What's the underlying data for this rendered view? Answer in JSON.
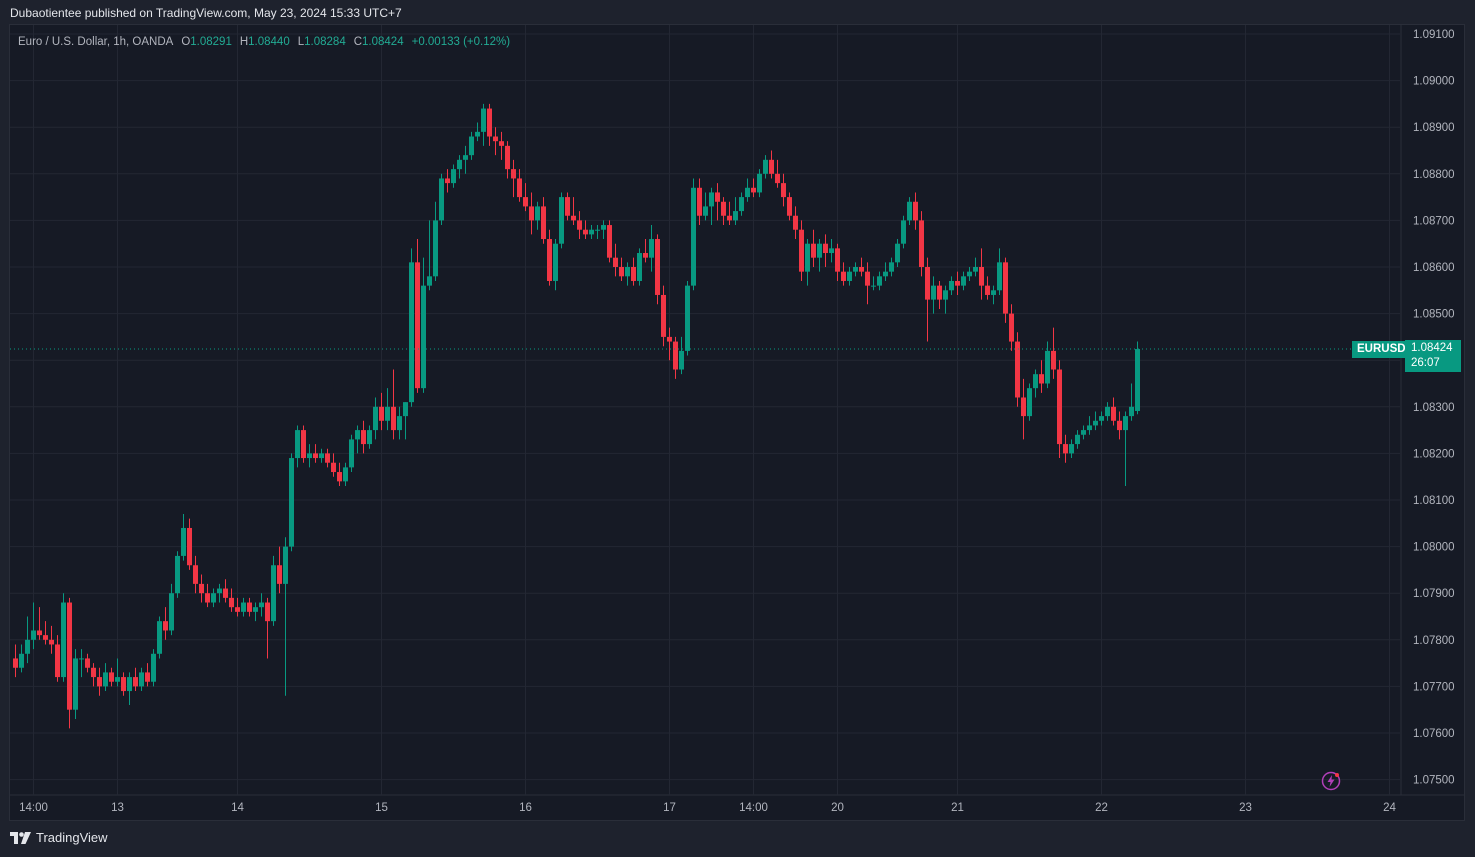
{
  "header": {
    "publish_line": "Dubaotientee published on TradingView.com, May 23, 2024 15:33 UTC+7"
  },
  "legend": {
    "description": "Euro / U.S. Dollar, 1h, OANDA",
    "open_label": "O",
    "open": "1.08291",
    "high_label": "H",
    "high": "1.08440",
    "low_label": "L",
    "low": "1.08284",
    "close_label": "C",
    "close": "1.08424",
    "change": "+0.00133 (+0.12%)"
  },
  "price_tag": {
    "symbol": "EURUSD",
    "price": "1.08424",
    "countdown": "26:07"
  },
  "footer": {
    "brand": "TradingView"
  },
  "colors": {
    "up": "#089981",
    "down": "#f23645",
    "grid": "#232733",
    "background": "#161a25"
  },
  "icons": [
    "tradingview-logo-icon",
    "bolt-icon"
  ],
  "chart_data": {
    "type": "candlestick",
    "symbol": "EURUSD",
    "interval": "1h",
    "y_ticks": [
      "1.09100",
      "1.09000",
      "1.08900",
      "1.08800",
      "1.08700",
      "1.08600",
      "1.08500",
      "1.08400",
      "1.08300",
      "1.08200",
      "1.08100",
      "1.08000",
      "1.07900",
      "1.07800",
      "1.07700",
      "1.07600",
      "1.07500"
    ],
    "ylim": [
      1.0745,
      1.0915
    ],
    "x_ticks": [
      {
        "label": "14:00",
        "index": 3
      },
      {
        "label": "13",
        "index": 17
      },
      {
        "label": "14",
        "index": 37
      },
      {
        "label": "15",
        "index": 61
      },
      {
        "label": "16",
        "index": 85
      },
      {
        "label": "17",
        "index": 109
      },
      {
        "label": "14:00",
        "index": 123
      },
      {
        "label": "20",
        "index": 137
      },
      {
        "label": "21",
        "index": 157
      },
      {
        "label": "22",
        "index": 181
      },
      {
        "label": "23",
        "index": 205
      },
      {
        "label": "24",
        "index": 229
      }
    ],
    "last_price": 1.08424,
    "candles": [
      [
        1.0776,
        1.0779,
        1.0772,
        1.0774
      ],
      [
        1.0774,
        1.0779,
        1.0773,
        1.0777
      ],
      [
        1.0777,
        1.0785,
        1.0775,
        1.078
      ],
      [
        1.078,
        1.0788,
        1.0778,
        1.0782
      ],
      [
        1.0782,
        1.0787,
        1.078,
        1.0781
      ],
      [
        1.0781,
        1.0784,
        1.0779,
        1.078
      ],
      [
        1.078,
        1.0783,
        1.0777,
        1.0779
      ],
      [
        1.0779,
        1.0781,
        1.0771,
        1.0772
      ],
      [
        1.0772,
        1.079,
        1.0771,
        1.0788
      ],
      [
        1.0788,
        1.0789,
        1.0761,
        1.0765
      ],
      [
        1.0765,
        1.0778,
        1.0763,
        1.0776
      ],
      [
        1.0776,
        1.0778,
        1.0772,
        1.0776
      ],
      [
        1.0776,
        1.0777,
        1.0773,
        1.0774
      ],
      [
        1.0774,
        1.0775,
        1.077,
        1.0772
      ],
      [
        1.0772,
        1.0774,
        1.0768,
        1.077
      ],
      [
        1.077,
        1.0775,
        1.0769,
        1.0773
      ],
      [
        1.0773,
        1.0774,
        1.077,
        1.0771
      ],
      [
        1.0771,
        1.0776,
        1.077,
        1.0772
      ],
      [
        1.0772,
        1.0773,
        1.0768,
        1.0769
      ],
      [
        1.0769,
        1.0773,
        1.0766,
        1.0772
      ],
      [
        1.0772,
        1.0774,
        1.0769,
        1.077
      ],
      [
        1.077,
        1.0774,
        1.0769,
        1.0773
      ],
      [
        1.0773,
        1.0775,
        1.077,
        1.0771
      ],
      [
        1.0771,
        1.0778,
        1.077,
        1.0777
      ],
      [
        1.0777,
        1.0785,
        1.0776,
        1.0784
      ],
      [
        1.0784,
        1.0787,
        1.078,
        1.0782
      ],
      [
        1.0782,
        1.0792,
        1.0781,
        1.079
      ],
      [
        1.079,
        1.0799,
        1.0789,
        1.0798
      ],
      [
        1.0798,
        1.0807,
        1.0797,
        1.0804
      ],
      [
        1.0804,
        1.0806,
        1.0795,
        1.0796
      ],
      [
        1.0796,
        1.0798,
        1.079,
        1.0792
      ],
      [
        1.0792,
        1.0794,
        1.0788,
        1.079
      ],
      [
        1.079,
        1.0792,
        1.0787,
        1.0788
      ],
      [
        1.0788,
        1.0791,
        1.0787,
        1.079
      ],
      [
        1.079,
        1.0792,
        1.0788,
        1.0791
      ],
      [
        1.0791,
        1.0793,
        1.0788,
        1.0789
      ],
      [
        1.0789,
        1.0791,
        1.0786,
        1.0787
      ],
      [
        1.0787,
        1.0789,
        1.0785,
        1.0786
      ],
      [
        1.0786,
        1.0789,
        1.0785,
        1.0788
      ],
      [
        1.0788,
        1.0789,
        1.0785,
        1.0786
      ],
      [
        1.0786,
        1.0788,
        1.0784,
        1.0787
      ],
      [
        1.0787,
        1.079,
        1.0785,
        1.0788
      ],
      [
        1.0788,
        1.0789,
        1.0776,
        1.0784
      ],
      [
        1.0784,
        1.0798,
        1.0783,
        1.0796
      ],
      [
        1.0796,
        1.08,
        1.079,
        1.0792
      ],
      [
        1.0792,
        1.0802,
        1.0768,
        1.08
      ],
      [
        1.08,
        1.082,
        1.0799,
        1.0819
      ],
      [
        1.0819,
        1.0826,
        1.0817,
        1.0825
      ],
      [
        1.0825,
        1.0826,
        1.0818,
        1.0819
      ],
      [
        1.0819,
        1.0822,
        1.0817,
        1.082
      ],
      [
        1.082,
        1.0822,
        1.0818,
        1.0819
      ],
      [
        1.0819,
        1.0821,
        1.0818,
        1.082
      ],
      [
        1.082,
        1.0821,
        1.0817,
        1.0818
      ],
      [
        1.0818,
        1.082,
        1.0815,
        1.0816
      ],
      [
        1.0816,
        1.0818,
        1.0813,
        1.0814
      ],
      [
        1.0814,
        1.0818,
        1.0813,
        1.0817
      ],
      [
        1.0817,
        1.0824,
        1.0816,
        1.0823
      ],
      [
        1.0823,
        1.0826,
        1.082,
        1.0825
      ],
      [
        1.0825,
        1.0827,
        1.082,
        1.0822
      ],
      [
        1.0822,
        1.0826,
        1.0821,
        1.0825
      ],
      [
        1.0825,
        1.0832,
        1.0823,
        1.083
      ],
      [
        1.083,
        1.0833,
        1.0825,
        1.0827
      ],
      [
        1.0827,
        1.0834,
        1.0825,
        1.083
      ],
      [
        1.083,
        1.0838,
        1.0823,
        1.0825
      ],
      [
        1.0825,
        1.083,
        1.0823,
        1.0828
      ],
      [
        1.0828,
        1.0831,
        1.0823,
        1.0831
      ],
      [
        1.0831,
        1.0864,
        1.083,
        1.0861
      ],
      [
        1.0861,
        1.0866,
        1.0833,
        1.0834
      ],
      [
        1.0834,
        1.0862,
        1.0833,
        1.0856
      ],
      [
        1.0856,
        1.087,
        1.0855,
        1.0858
      ],
      [
        1.0858,
        1.0874,
        1.0857,
        1.087
      ],
      [
        1.087,
        1.088,
        1.0869,
        1.0879
      ],
      [
        1.0879,
        1.0881,
        1.0876,
        1.0878
      ],
      [
        1.0878,
        1.0882,
        1.0877,
        1.0881
      ],
      [
        1.0881,
        1.0884,
        1.0879,
        1.0883
      ],
      [
        1.0883,
        1.0886,
        1.088,
        1.0884
      ],
      [
        1.0884,
        1.0889,
        1.0883,
        1.0888
      ],
      [
        1.0888,
        1.0891,
        1.0887,
        1.0889
      ],
      [
        1.0889,
        1.0895,
        1.0886,
        1.0894
      ],
      [
        1.0894,
        1.0895,
        1.0886,
        1.0888
      ],
      [
        1.0888,
        1.089,
        1.0884,
        1.0887
      ],
      [
        1.0887,
        1.0889,
        1.0883,
        1.0886
      ],
      [
        1.0886,
        1.0887,
        1.0879,
        1.0881
      ],
      [
        1.0881,
        1.0883,
        1.0875,
        1.0879
      ],
      [
        1.0879,
        1.0881,
        1.0874,
        1.0875
      ],
      [
        1.0875,
        1.0878,
        1.0872,
        1.0873
      ],
      [
        1.0873,
        1.0876,
        1.0867,
        1.087
      ],
      [
        1.087,
        1.0874,
        1.0868,
        1.0873
      ],
      [
        1.0873,
        1.0875,
        1.0865,
        1.0866
      ],
      [
        1.0866,
        1.0868,
        1.0856,
        1.0857
      ],
      [
        1.0857,
        1.0866,
        1.0855,
        1.0865
      ],
      [
        1.0865,
        1.0876,
        1.0864,
        1.0875
      ],
      [
        1.0875,
        1.0876,
        1.087,
        1.0871
      ],
      [
        1.0871,
        1.0875,
        1.0869,
        1.087
      ],
      [
        1.087,
        1.0872,
        1.0866,
        1.0868
      ],
      [
        1.0868,
        1.087,
        1.0866,
        1.0867
      ],
      [
        1.0867,
        1.0869,
        1.0866,
        1.0868
      ],
      [
        1.0868,
        1.0869,
        1.0866,
        1.0868
      ],
      [
        1.0868,
        1.087,
        1.0866,
        1.0869
      ],
      [
        1.0869,
        1.087,
        1.0861,
        1.0862
      ],
      [
        1.0862,
        1.0865,
        1.0858,
        1.086
      ],
      [
        1.086,
        1.0862,
        1.0857,
        1.0858
      ],
      [
        1.0858,
        1.0861,
        1.0856,
        1.086
      ],
      [
        1.086,
        1.0862,
        1.0856,
        1.0857
      ],
      [
        1.0857,
        1.0864,
        1.0856,
        1.0863
      ],
      [
        1.0863,
        1.0866,
        1.0861,
        1.0862
      ],
      [
        1.0862,
        1.0869,
        1.0859,
        1.0866
      ],
      [
        1.0866,
        1.0867,
        1.0852,
        1.0854
      ],
      [
        1.0854,
        1.0856,
        1.0843,
        1.0845
      ],
      [
        1.0845,
        1.0847,
        1.084,
        1.0844
      ],
      [
        1.0844,
        1.0845,
        1.0836,
        1.0838
      ],
      [
        1.0838,
        1.0845,
        1.0837,
        1.0842
      ],
      [
        1.0842,
        1.0857,
        1.0841,
        1.0856
      ],
      [
        1.0856,
        1.0879,
        1.0855,
        1.0877
      ],
      [
        1.0877,
        1.0879,
        1.0869,
        1.0871
      ],
      [
        1.0871,
        1.0876,
        1.087,
        1.0873
      ],
      [
        1.0873,
        1.0877,
        1.0869,
        1.0876
      ],
      [
        1.0876,
        1.0878,
        1.087,
        1.0874
      ],
      [
        1.0874,
        1.0875,
        1.0869,
        1.0871
      ],
      [
        1.0871,
        1.0874,
        1.0869,
        1.087
      ],
      [
        1.087,
        1.0875,
        1.0869,
        1.0872
      ],
      [
        1.0872,
        1.0876,
        1.0871,
        1.0875
      ],
      [
        1.0875,
        1.0879,
        1.0874,
        1.0877
      ],
      [
        1.0877,
        1.0879,
        1.0875,
        1.0876
      ],
      [
        1.0876,
        1.0881,
        1.0875,
        1.088
      ],
      [
        1.088,
        1.0884,
        1.0879,
        1.0883
      ],
      [
        1.0883,
        1.0885,
        1.0879,
        1.088
      ],
      [
        1.088,
        1.0883,
        1.0877,
        1.0878
      ],
      [
        1.0878,
        1.088,
        1.0873,
        1.0875
      ],
      [
        1.0875,
        1.0876,
        1.087,
        1.0871
      ],
      [
        1.0871,
        1.0873,
        1.0866,
        1.0868
      ],
      [
        1.0868,
        1.087,
        1.0857,
        1.0859
      ],
      [
        1.0859,
        1.0866,
        1.0856,
        1.0865
      ],
      [
        1.0865,
        1.0868,
        1.086,
        1.0862
      ],
      [
        1.0862,
        1.0866,
        1.0859,
        1.0865
      ],
      [
        1.0865,
        1.0867,
        1.086,
        1.0863
      ],
      [
        1.0863,
        1.0866,
        1.0861,
        1.0864
      ],
      [
        1.0864,
        1.0865,
        1.0857,
        1.0859
      ],
      [
        1.0859,
        1.0861,
        1.0856,
        1.0857
      ],
      [
        1.0857,
        1.086,
        1.0856,
        1.0859
      ],
      [
        1.0859,
        1.0861,
        1.0858,
        1.086
      ],
      [
        1.086,
        1.0862,
        1.0858,
        1.0859
      ],
      [
        1.0859,
        1.0861,
        1.0852,
        1.0856
      ],
      [
        1.0856,
        1.0858,
        1.0855,
        1.0856
      ],
      [
        1.0856,
        1.0859,
        1.0855,
        1.0858
      ],
      [
        1.0858,
        1.0861,
        1.0857,
        1.0859
      ],
      [
        1.0859,
        1.0862,
        1.0858,
        1.0861
      ],
      [
        1.0861,
        1.0866,
        1.086,
        1.0865
      ],
      [
        1.0865,
        1.0871,
        1.0864,
        1.087
      ],
      [
        1.087,
        1.0875,
        1.0869,
        1.0874
      ],
      [
        1.0874,
        1.0876,
        1.0868,
        1.087
      ],
      [
        1.087,
        1.0872,
        1.0858,
        1.086
      ],
      [
        1.086,
        1.0862,
        1.0844,
        1.0853
      ],
      [
        1.0853,
        1.0858,
        1.085,
        1.0856
      ],
      [
        1.0856,
        1.0857,
        1.0851,
        1.0853
      ],
      [
        1.0853,
        1.0856,
        1.085,
        1.0855
      ],
      [
        1.0855,
        1.0858,
        1.0854,
        1.0857
      ],
      [
        1.0857,
        1.0859,
        1.0854,
        1.0856
      ],
      [
        1.0856,
        1.0859,
        1.0855,
        1.0858
      ],
      [
        1.0858,
        1.086,
        1.0857,
        1.0859
      ],
      [
        1.0859,
        1.0862,
        1.0858,
        1.086
      ],
      [
        1.086,
        1.0864,
        1.0853,
        1.0856
      ],
      [
        1.0856,
        1.0858,
        1.0853,
        1.0854
      ],
      [
        1.0854,
        1.0856,
        1.0852,
        1.0855
      ],
      [
        1.0855,
        1.0864,
        1.0854,
        1.0861
      ],
      [
        1.0861,
        1.0862,
        1.0848,
        1.085
      ],
      [
        1.085,
        1.0852,
        1.0842,
        1.0844
      ],
      [
        1.0844,
        1.0846,
        1.083,
        1.0832
      ],
      [
        1.0832,
        1.0836,
        1.0823,
        1.0828
      ],
      [
        1.0828,
        1.0835,
        1.0827,
        1.0834
      ],
      [
        1.0834,
        1.0838,
        1.0832,
        1.0837
      ],
      [
        1.0837,
        1.084,
        1.0833,
        1.0835
      ],
      [
        1.0835,
        1.0844,
        1.0834,
        1.0842
      ],
      [
        1.0842,
        1.0847,
        1.0836,
        1.0838
      ],
      [
        1.0838,
        1.084,
        1.0819,
        1.0822
      ],
      [
        1.0822,
        1.0824,
        1.0818,
        1.082
      ],
      [
        1.082,
        1.0823,
        1.0819,
        1.0822
      ],
      [
        1.0822,
        1.0825,
        1.0821,
        1.0824
      ],
      [
        1.0824,
        1.0826,
        1.0823,
        1.0825
      ],
      [
        1.0825,
        1.0828,
        1.0824,
        1.0826
      ],
      [
        1.0826,
        1.0829,
        1.0825,
        1.0827
      ],
      [
        1.0827,
        1.0829,
        1.0826,
        1.0828
      ],
      [
        1.0828,
        1.0831,
        1.0827,
        1.083
      ],
      [
        1.083,
        1.0832,
        1.0826,
        1.0827
      ],
      [
        1.0827,
        1.0829,
        1.0823,
        1.0825
      ],
      [
        1.0825,
        1.0829,
        1.0813,
        1.0828
      ],
      [
        1.0828,
        1.0835,
        1.0827,
        1.083
      ],
      [
        1.08291,
        1.0844,
        1.08284,
        1.08424
      ]
    ]
  }
}
